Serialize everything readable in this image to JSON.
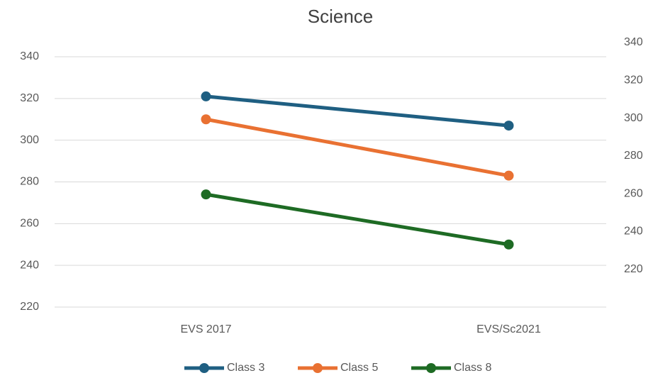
{
  "chart_data": {
    "type": "line",
    "title": "Science",
    "categories": [
      "EVS 2017",
      "EVS/Sc2021"
    ],
    "series": [
      {
        "name": "Class 3",
        "color": "#1f5f82",
        "values": [
          321,
          307
        ]
      },
      {
        "name": "Class 5",
        "color": "#e97132",
        "values": [
          310,
          283
        ]
      },
      {
        "name": "Class 8",
        "color": "#1e6b24",
        "values": [
          274,
          250
        ]
      }
    ],
    "ylim": [
      220,
      340
    ],
    "yticks": [
      220,
      240,
      260,
      280,
      300,
      320,
      340
    ],
    "y2lim": [
      200,
      340
    ],
    "y2ticks": [
      220,
      240,
      260,
      280,
      300,
      320,
      340
    ],
    "grid": true,
    "legend": "bottom"
  }
}
